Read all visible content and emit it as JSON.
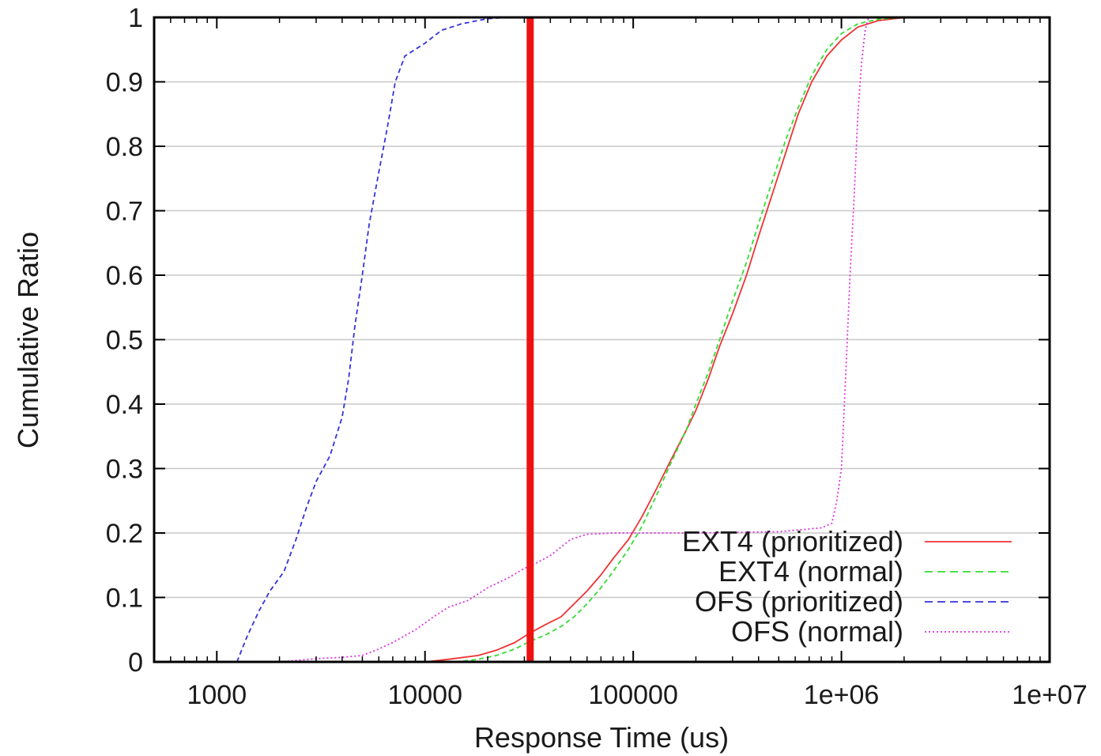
{
  "chart_data": {
    "type": "line",
    "xlabel": "Response Time (us)",
    "ylabel": "Cumulative Ratio",
    "xscale": "log",
    "xlim": [
      500,
      10000000
    ],
    "ylim": [
      0,
      1
    ],
    "xticks": [
      {
        "value": 1000,
        "label": "1000"
      },
      {
        "value": 10000,
        "label": "10000"
      },
      {
        "value": 100000,
        "label": "100000"
      },
      {
        "value": 1000000,
        "label": "1e+06"
      },
      {
        "value": 10000000,
        "label": "1e+07"
      }
    ],
    "yticks": [
      {
        "value": 0,
        "label": "0"
      },
      {
        "value": 0.1,
        "label": "0.1"
      },
      {
        "value": 0.2,
        "label": "0.2"
      },
      {
        "value": 0.3,
        "label": "0.3"
      },
      {
        "value": 0.4,
        "label": "0.4"
      },
      {
        "value": 0.5,
        "label": "0.5"
      },
      {
        "value": 0.6,
        "label": "0.6"
      },
      {
        "value": 0.7,
        "label": "0.7"
      },
      {
        "value": 0.8,
        "label": "0.8"
      },
      {
        "value": 0.9,
        "label": "0.9"
      },
      {
        "value": 1,
        "label": "1"
      }
    ],
    "grid": "horizontal",
    "legend_position": "bottom-right",
    "vertical_marker": {
      "x": 32000,
      "color": "#ee1111"
    },
    "series": [
      {
        "name": "EXT4 (prioritized)",
        "color": "#ee3333",
        "style": "solid",
        "points": [
          [
            10000,
            0
          ],
          [
            13000,
            0.004
          ],
          [
            18000,
            0.01
          ],
          [
            22000,
            0.018
          ],
          [
            27000,
            0.03
          ],
          [
            32000,
            0.045
          ],
          [
            38000,
            0.058
          ],
          [
            45000,
            0.07
          ],
          [
            52000,
            0.09
          ],
          [
            60000,
            0.11
          ],
          [
            70000,
            0.135
          ],
          [
            80000,
            0.16
          ],
          [
            95000,
            0.19
          ],
          [
            110000,
            0.225
          ],
          [
            130000,
            0.27
          ],
          [
            150000,
            0.31
          ],
          [
            180000,
            0.36
          ],
          [
            200000,
            0.39
          ],
          [
            230000,
            0.44
          ],
          [
            260000,
            0.49
          ],
          [
            300000,
            0.54
          ],
          [
            350000,
            0.6
          ],
          [
            400000,
            0.66
          ],
          [
            470000,
            0.73
          ],
          [
            540000,
            0.79
          ],
          [
            620000,
            0.85
          ],
          [
            720000,
            0.9
          ],
          [
            850000,
            0.94
          ],
          [
            1000000,
            0.965
          ],
          [
            1200000,
            0.985
          ],
          [
            1500000,
            0.995
          ],
          [
            1900000,
            0.999
          ],
          [
            2500000,
            1
          ]
        ]
      },
      {
        "name": "EXT4 (normal)",
        "color": "#33dd33",
        "style": "dashed",
        "points": [
          [
            14000,
            0
          ],
          [
            18000,
            0.004
          ],
          [
            22000,
            0.01
          ],
          [
            27000,
            0.02
          ],
          [
            32000,
            0.032
          ],
          [
            38000,
            0.042
          ],
          [
            45000,
            0.055
          ],
          [
            52000,
            0.07
          ],
          [
            60000,
            0.09
          ],
          [
            70000,
            0.115
          ],
          [
            80000,
            0.14
          ],
          [
            95000,
            0.175
          ],
          [
            110000,
            0.21
          ],
          [
            130000,
            0.26
          ],
          [
            150000,
            0.305
          ],
          [
            180000,
            0.36
          ],
          [
            200000,
            0.4
          ],
          [
            230000,
            0.45
          ],
          [
            260000,
            0.5
          ],
          [
            300000,
            0.56
          ],
          [
            350000,
            0.62
          ],
          [
            400000,
            0.68
          ],
          [
            470000,
            0.75
          ],
          [
            540000,
            0.81
          ],
          [
            620000,
            0.86
          ],
          [
            720000,
            0.91
          ],
          [
            850000,
            0.95
          ],
          [
            1000000,
            0.975
          ],
          [
            1200000,
            0.99
          ],
          [
            1500000,
            0.997
          ],
          [
            2000000,
            1
          ]
        ]
      },
      {
        "name": "OFS (prioritized)",
        "color": "#3333dd",
        "style": "dashed",
        "points": [
          [
            1250,
            0
          ],
          [
            1400,
            0.04
          ],
          [
            1600,
            0.08
          ],
          [
            1800,
            0.11
          ],
          [
            2100,
            0.14
          ],
          [
            2400,
            0.19
          ],
          [
            2700,
            0.24
          ],
          [
            3000,
            0.28
          ],
          [
            3500,
            0.32
          ],
          [
            4000,
            0.38
          ],
          [
            4300,
            0.44
          ],
          [
            4600,
            0.52
          ],
          [
            5000,
            0.6
          ],
          [
            5400,
            0.68
          ],
          [
            6000,
            0.76
          ],
          [
            6600,
            0.83
          ],
          [
            7200,
            0.9
          ],
          [
            8000,
            0.94
          ],
          [
            10000,
            0.96
          ],
          [
            12000,
            0.98
          ],
          [
            15000,
            0.99
          ],
          [
            20000,
            0.998
          ],
          [
            25000,
            1
          ]
        ]
      },
      {
        "name": "OFS (normal)",
        "color": "#dd33dd",
        "style": "dotted",
        "points": [
          [
            2000,
            0
          ],
          [
            3000,
            0.005
          ],
          [
            4000,
            0.007
          ],
          [
            5000,
            0.01
          ],
          [
            6000,
            0.02
          ],
          [
            7000,
            0.03
          ],
          [
            9000,
            0.05
          ],
          [
            11000,
            0.07
          ],
          [
            13000,
            0.085
          ],
          [
            16000,
            0.095
          ],
          [
            20000,
            0.115
          ],
          [
            25000,
            0.13
          ],
          [
            30000,
            0.145
          ],
          [
            35000,
            0.155
          ],
          [
            40000,
            0.165
          ],
          [
            45000,
            0.178
          ],
          [
            50000,
            0.19
          ],
          [
            60000,
            0.198
          ],
          [
            80000,
            0.2
          ],
          [
            200000,
            0.2
          ],
          [
            500000,
            0.202
          ],
          [
            800000,
            0.208
          ],
          [
            900000,
            0.215
          ],
          [
            950000,
            0.25
          ],
          [
            1000000,
            0.3
          ],
          [
            1050000,
            0.45
          ],
          [
            1100000,
            0.6
          ],
          [
            1150000,
            0.72
          ],
          [
            1200000,
            0.85
          ],
          [
            1250000,
            0.93
          ],
          [
            1300000,
            0.98
          ],
          [
            1350000,
            1
          ]
        ]
      }
    ]
  }
}
